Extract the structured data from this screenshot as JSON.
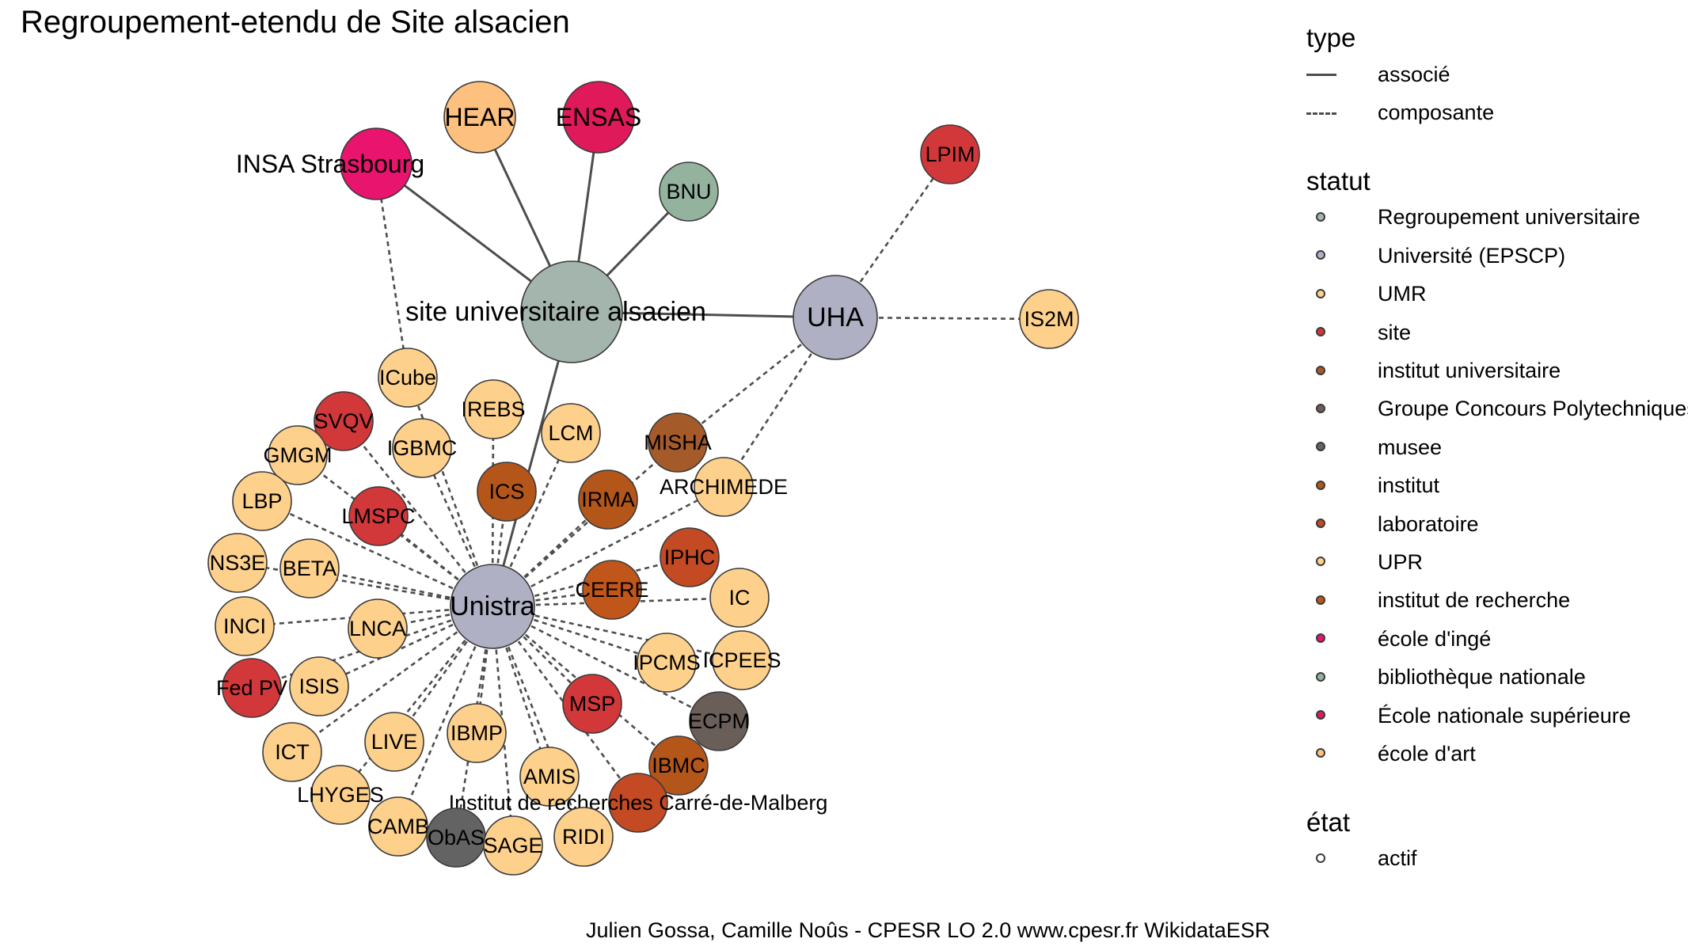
{
  "title": "Regroupement-etendu de Site alsacien",
  "caption": "Julien Gossa, Camille Noûs - CPESR LO 2.0 www.cpesr.fr WikidataESR",
  "legend": {
    "type": {
      "title": "type",
      "items": [
        {
          "label": "associé",
          "style": "solid"
        },
        {
          "label": "composante",
          "style": "dashed"
        }
      ]
    },
    "statut": {
      "title": "statut",
      "items": [
        {
          "label": "Regroupement universitaire",
          "color": "#a3b5ac"
        },
        {
          "label": "Université (EPSCP)",
          "color": "#b0b0c4"
        },
        {
          "label": "UMR",
          "color": "#fdd08c"
        },
        {
          "label": "site",
          "color": "#d2383a"
        },
        {
          "label": "institut universitaire",
          "color": "#a55a2a"
        },
        {
          "label": "Groupe Concours Polytechniques",
          "color": "#6a5e59"
        },
        {
          "label": "musee",
          "color": "#636363"
        },
        {
          "label": "institut",
          "color": "#b4561a"
        },
        {
          "label": "laboratoire",
          "color": "#c34a22"
        },
        {
          "label": "UPR",
          "color": "#fdd08c"
        },
        {
          "label": "institut de recherche",
          "color": "#c0561a"
        },
        {
          "label": "école d'ingé",
          "color": "#e8146e"
        },
        {
          "label": "bibliothèque nationale",
          "color": "#94b39f"
        },
        {
          "label": "École nationale supérieure",
          "color": "#e01a5a"
        },
        {
          "label": "école d'art",
          "color": "#fdc07e"
        }
      ]
    },
    "etat": {
      "title": "état",
      "items": [
        {
          "label": "actif",
          "color": "#ffffff"
        }
      ]
    }
  },
  "nodes": [
    {
      "id": "site",
      "label": "site universitaire alsacien",
      "statut": "Regroupement universitaire",
      "color": "#a3b5ac",
      "size": "xl"
    },
    {
      "id": "UHA",
      "label": "UHA",
      "statut": "Université (EPSCP)",
      "color": "#b0b0c4",
      "size": "l"
    },
    {
      "id": "Unistra",
      "label": "Unistra",
      "statut": "Université (EPSCP)",
      "color": "#b0b0c4",
      "size": "l"
    },
    {
      "id": "HEAR",
      "label": "HEAR",
      "statut": "école d'art",
      "color": "#fdc07e",
      "size": "m"
    },
    {
      "id": "ENSAS",
      "label": "ENSAS",
      "statut": "École nationale supérieure",
      "color": "#e01a5a",
      "size": "m"
    },
    {
      "id": "INSA",
      "label": "INSA Strasbourg",
      "statut": "école d'ingé",
      "color": "#e8146e",
      "size": "m"
    },
    {
      "id": "BNU",
      "label": "BNU",
      "statut": "bibliothèque nationale",
      "color": "#94b39f",
      "size": "s"
    },
    {
      "id": "LPIM",
      "label": "LPIM",
      "statut": "site",
      "color": "#d2383a",
      "size": "s"
    },
    {
      "id": "IS2M",
      "label": "IS2M",
      "statut": "UMR",
      "color": "#fdd08c",
      "size": "s"
    },
    {
      "id": "ICube",
      "label": "ICube",
      "statut": "UMR",
      "color": "#fdd08c",
      "size": "s"
    },
    {
      "id": "SVQV",
      "label": "SVQV",
      "statut": "site",
      "color": "#d2383a",
      "size": "s"
    },
    {
      "id": "GMGM",
      "label": "GMGM",
      "statut": "UMR",
      "color": "#fdd08c",
      "size": "s"
    },
    {
      "id": "IGBMC",
      "label": "IGBMC",
      "statut": "UMR",
      "color": "#fdd08c",
      "size": "s"
    },
    {
      "id": "IREBS",
      "label": "IREBS",
      "statut": "UMR",
      "color": "#fdd08c",
      "size": "s"
    },
    {
      "id": "LCM",
      "label": "LCM",
      "statut": "UMR",
      "color": "#fdd08c",
      "size": "s"
    },
    {
      "id": "MISHA",
      "label": "MISHA",
      "statut": "institut universitaire",
      "color": "#a55a2a",
      "size": "s"
    },
    {
      "id": "ARCHIMEDE",
      "label": "ARCHIMEDE",
      "statut": "UMR",
      "color": "#fdd08c",
      "size": "s"
    },
    {
      "id": "ICS",
      "label": "ICS",
      "statut": "institut",
      "color": "#b4561a",
      "size": "s"
    },
    {
      "id": "IRMA",
      "label": "IRMA",
      "statut": "institut",
      "color": "#b4561a",
      "size": "s"
    },
    {
      "id": "LBP",
      "label": "LBP",
      "statut": "UMR",
      "color": "#fdd08c",
      "size": "s"
    },
    {
      "id": "LMSPC",
      "label": "LMSPC",
      "statut": "site",
      "color": "#d2383a",
      "size": "s"
    },
    {
      "id": "NS3E",
      "label": "NS3E",
      "statut": "UMR",
      "color": "#fdd08c",
      "size": "s"
    },
    {
      "id": "BETA",
      "label": "BETA",
      "statut": "UMR",
      "color": "#fdd08c",
      "size": "s"
    },
    {
      "id": "IPHC",
      "label": "IPHC",
      "statut": "laboratoire",
      "color": "#c34a22",
      "size": "s"
    },
    {
      "id": "CEERE",
      "label": "CEERE",
      "statut": "institut de recherche",
      "color": "#c0561a",
      "size": "s"
    },
    {
      "id": "IC",
      "label": "IC",
      "statut": "UMR",
      "color": "#fdd08c",
      "size": "s"
    },
    {
      "id": "INCI",
      "label": "INCI",
      "statut": "UPR",
      "color": "#fdd08c",
      "size": "s"
    },
    {
      "id": "LNCA",
      "label": "LNCA",
      "statut": "UMR",
      "color": "#fdd08c",
      "size": "s"
    },
    {
      "id": "IPCMS",
      "label": "IPCMS",
      "statut": "UMR",
      "color": "#fdd08c",
      "size": "s"
    },
    {
      "id": "ICPEES",
      "label": "ICPEES",
      "statut": "UMR",
      "color": "#fdd08c",
      "size": "s"
    },
    {
      "id": "FedPV",
      "label": "Fed PV",
      "statut": "site",
      "color": "#d2383a",
      "size": "s"
    },
    {
      "id": "ISIS",
      "label": "ISIS",
      "statut": "UMR",
      "color": "#fdd08c",
      "size": "s"
    },
    {
      "id": "MSP",
      "label": "MSP",
      "statut": "site",
      "color": "#d2383a",
      "size": "s"
    },
    {
      "id": "ECPM",
      "label": "ECPM",
      "statut": "Groupe Concours Polytechniques",
      "color": "#6a5e59",
      "size": "s"
    },
    {
      "id": "ICT",
      "label": "ICT",
      "statut": "UMR",
      "color": "#fdd08c",
      "size": "s"
    },
    {
      "id": "LIVE",
      "label": "LIVE",
      "statut": "UMR",
      "color": "#fdd08c",
      "size": "s"
    },
    {
      "id": "IBMP",
      "label": "IBMP",
      "statut": "UPR",
      "color": "#fdd08c",
      "size": "s"
    },
    {
      "id": "IBMC",
      "label": "IBMC",
      "statut": "institut",
      "color": "#b4561a",
      "size": "s"
    },
    {
      "id": "AMIS",
      "label": "AMIS",
      "statut": "UMR",
      "color": "#fdd08c",
      "size": "s"
    },
    {
      "id": "IRCM",
      "label": "Institut de recherches Carré-de-Malberg",
      "statut": "laboratoire",
      "color": "#c34a22",
      "size": "s"
    },
    {
      "id": "LHYGES",
      "label": "LHYGES",
      "statut": "UMR",
      "color": "#fdd08c",
      "size": "s"
    },
    {
      "id": "CAMB",
      "label": "CAMB",
      "statut": "UMR",
      "color": "#fdd08c",
      "size": "s"
    },
    {
      "id": "ObAS",
      "label": "ObAS",
      "statut": "musee",
      "color": "#636363",
      "size": "s"
    },
    {
      "id": "SAGE",
      "label": "SAGE",
      "statut": "UMR",
      "color": "#fdd08c",
      "size": "s"
    },
    {
      "id": "RIDI",
      "label": "RIDI",
      "statut": "UMR",
      "color": "#fdd08c",
      "size": "s"
    }
  ],
  "edges": [
    {
      "from": "site",
      "to": "INSA",
      "type": "associé"
    },
    {
      "from": "site",
      "to": "HEAR",
      "type": "associé"
    },
    {
      "from": "site",
      "to": "ENSAS",
      "type": "associé"
    },
    {
      "from": "site",
      "to": "BNU",
      "type": "associé"
    },
    {
      "from": "site",
      "to": "UHA",
      "type": "associé"
    },
    {
      "from": "site",
      "to": "Unistra",
      "type": "associé"
    },
    {
      "from": "UHA",
      "to": "LPIM",
      "type": "composante"
    },
    {
      "from": "UHA",
      "to": "IS2M",
      "type": "composante"
    },
    {
      "from": "UHA",
      "to": "MISHA",
      "type": "composante"
    },
    {
      "from": "UHA",
      "to": "ARCHIMEDE",
      "type": "composante"
    },
    {
      "from": "INSA",
      "to": "ICube",
      "type": "composante"
    },
    {
      "from": "Unistra",
      "to": "ICube",
      "type": "composante"
    },
    {
      "from": "Unistra",
      "to": "SVQV",
      "type": "composante"
    },
    {
      "from": "Unistra",
      "to": "GMGM",
      "type": "composante"
    },
    {
      "from": "Unistra",
      "to": "IGBMC",
      "type": "composante"
    },
    {
      "from": "Unistra",
      "to": "IREBS",
      "type": "composante"
    },
    {
      "from": "Unistra",
      "to": "LCM",
      "type": "composante"
    },
    {
      "from": "Unistra",
      "to": "MISHA",
      "type": "composante"
    },
    {
      "from": "Unistra",
      "to": "ARCHIMEDE",
      "type": "composante"
    },
    {
      "from": "Unistra",
      "to": "ICS",
      "type": "composante"
    },
    {
      "from": "Unistra",
      "to": "IRMA",
      "type": "composante"
    },
    {
      "from": "Unistra",
      "to": "LBP",
      "type": "composante"
    },
    {
      "from": "Unistra",
      "to": "LMSPC",
      "type": "composante"
    },
    {
      "from": "Unistra",
      "to": "NS3E",
      "type": "composante"
    },
    {
      "from": "Unistra",
      "to": "BETA",
      "type": "composante"
    },
    {
      "from": "Unistra",
      "to": "IPHC",
      "type": "composante"
    },
    {
      "from": "Unistra",
      "to": "CEERE",
      "type": "composante"
    },
    {
      "from": "Unistra",
      "to": "IC",
      "type": "composante"
    },
    {
      "from": "Unistra",
      "to": "INCI",
      "type": "composante"
    },
    {
      "from": "Unistra",
      "to": "LNCA",
      "type": "composante"
    },
    {
      "from": "Unistra",
      "to": "IPCMS",
      "type": "composante"
    },
    {
      "from": "Unistra",
      "to": "ICPEES",
      "type": "composante"
    },
    {
      "from": "Unistra",
      "to": "FedPV",
      "type": "composante"
    },
    {
      "from": "Unistra",
      "to": "ISIS",
      "type": "composante"
    },
    {
      "from": "Unistra",
      "to": "MSP",
      "type": "composante"
    },
    {
      "from": "Unistra",
      "to": "ECPM",
      "type": "composante"
    },
    {
      "from": "Unistra",
      "to": "ICT",
      "type": "composante"
    },
    {
      "from": "Unistra",
      "to": "LIVE",
      "type": "composante"
    },
    {
      "from": "Unistra",
      "to": "IBMP",
      "type": "composante"
    },
    {
      "from": "Unistra",
      "to": "IBMC",
      "type": "composante"
    },
    {
      "from": "Unistra",
      "to": "AMIS",
      "type": "composante"
    },
    {
      "from": "Unistra",
      "to": "IRCM",
      "type": "composante"
    },
    {
      "from": "Unistra",
      "to": "LHYGES",
      "type": "composante"
    },
    {
      "from": "Unistra",
      "to": "CAMB",
      "type": "composante"
    },
    {
      "from": "Unistra",
      "to": "ObAS",
      "type": "composante"
    },
    {
      "from": "Unistra",
      "to": "SAGE",
      "type": "composante"
    },
    {
      "from": "Unistra",
      "to": "RIDI",
      "type": "composante"
    }
  ]
}
